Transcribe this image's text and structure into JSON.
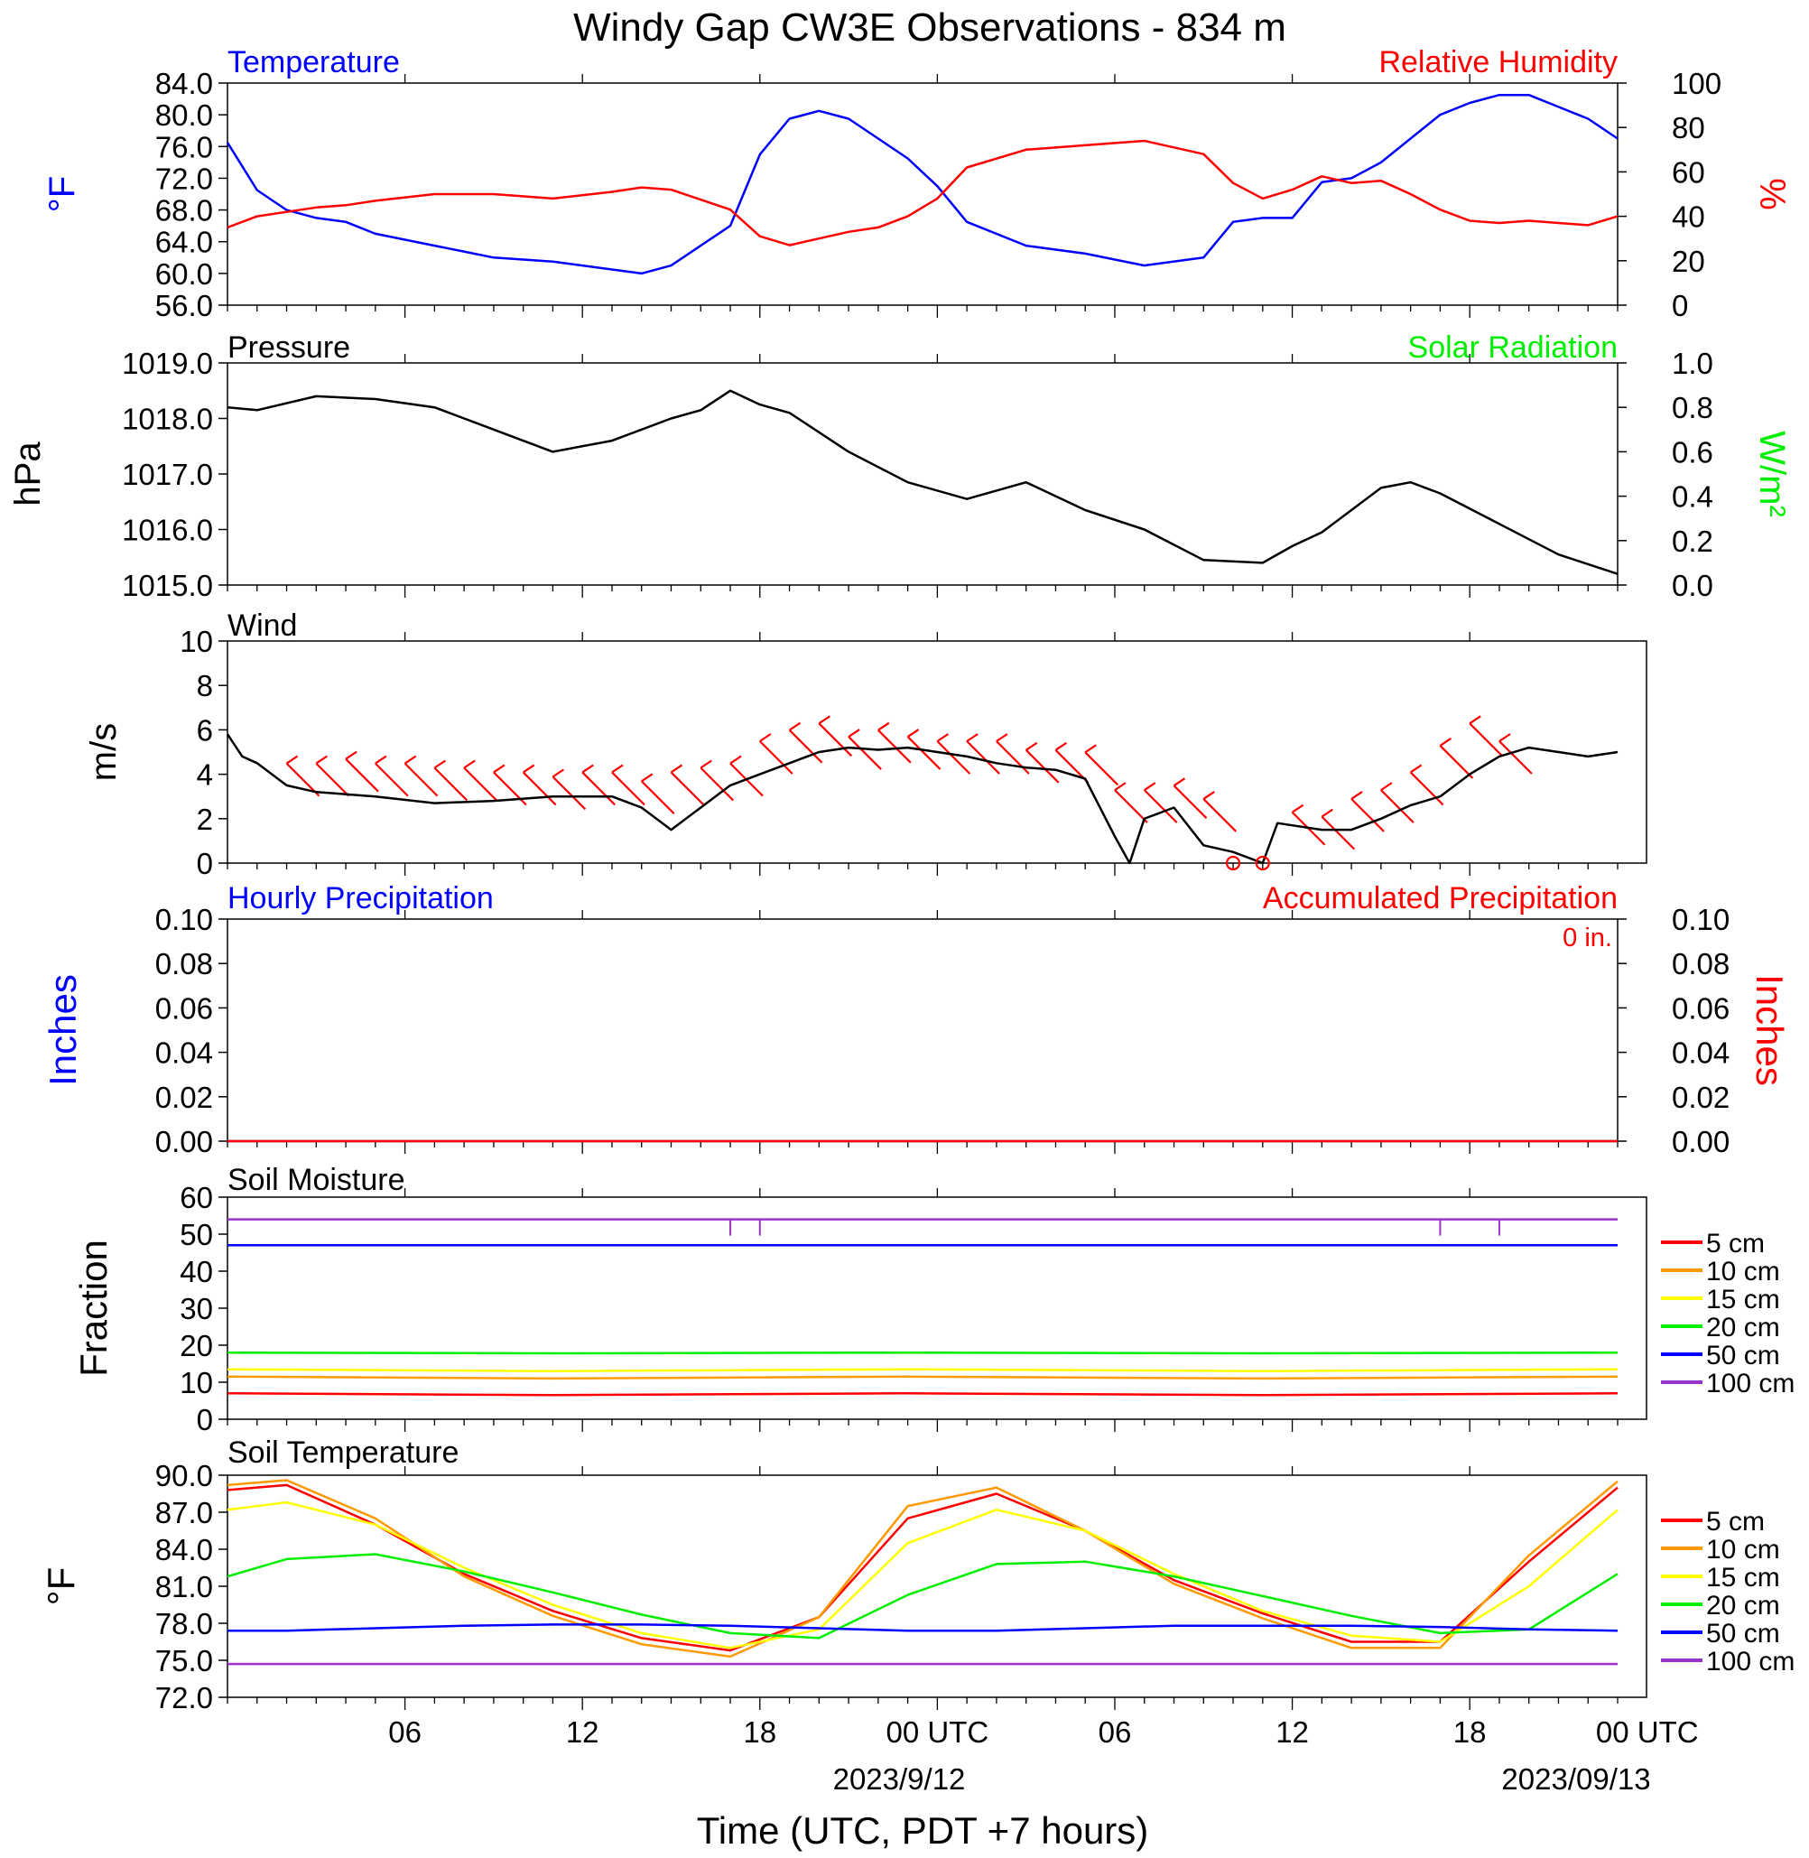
{
  "title": "Windy Gap CW3E Observations - 834 m",
  "x_axis": {
    "label": "Time (UTC, PDT +7 hours)",
    "ticks": [
      "06",
      "12",
      "18",
      "00 UTC",
      "06",
      "12",
      "18",
      "00 UTC"
    ],
    "dates": [
      "2023/9/12",
      "2023/09/13"
    ]
  },
  "colors": {
    "blue": "#0000ff",
    "red": "#ff0000",
    "green": "#00ee00",
    "black": "#000000",
    "orange": "#ff9900",
    "yellow": "#ffff00",
    "purple": "#9933cc"
  },
  "chart_data": [
    {
      "type": "line",
      "title_left": "Temperature",
      "title_right": "Relative Humidity",
      "ylabel_left": "°F",
      "ylabel_right": "%",
      "ylim_left": [
        56,
        84
      ],
      "ylim_right": [
        0,
        100
      ],
      "yticks_left": [
        "56.0",
        "60.0",
        "64.0",
        "68.0",
        "72.0",
        "76.0",
        "80.0",
        "84.0"
      ],
      "yticks_right": [
        "0",
        "20",
        "40",
        "60",
        "80",
        "100"
      ],
      "x_hours": [
        1,
        2,
        3,
        4,
        5,
        6,
        8,
        10,
        12,
        14,
        15,
        16,
        18,
        19,
        20,
        21,
        22,
        23,
        24,
        25,
        26,
        28,
        30,
        32,
        34,
        35,
        36,
        37,
        38,
        39,
        40,
        41,
        42,
        43,
        44,
        45,
        46,
        47,
        48
      ],
      "series": [
        {
          "name": "Temperature",
          "axis": "left",
          "color": "#0000ff",
          "values": [
            76.5,
            70.5,
            68,
            67,
            66.5,
            65,
            63.5,
            62,
            61.5,
            60.5,
            60,
            61,
            66,
            75,
            79.5,
            80.5,
            79.5,
            77,
            74.5,
            71,
            66.5,
            63.5,
            62.5,
            61,
            62,
            66.5,
            67,
            67,
            71.5,
            72,
            74,
            77,
            80,
            81.5,
            82.5,
            82.5,
            81,
            79.5,
            77
          ]
        },
        {
          "name": "Relative Humidity",
          "axis": "right",
          "color": "#ff0000",
          "values": [
            35,
            40,
            42,
            44,
            45,
            47,
            50,
            50,
            48,
            51,
            53,
            52,
            43,
            31,
            27,
            30,
            33,
            35,
            40,
            48,
            62,
            70,
            72,
            74,
            68,
            55,
            48,
            52,
            58,
            55,
            56,
            50,
            43,
            38,
            37,
            38,
            37,
            36,
            40
          ]
        }
      ]
    },
    {
      "type": "line",
      "title_left": "Pressure",
      "title_right": "Solar Radiation",
      "ylabel_left": "hPa",
      "ylabel_right": "W/m²",
      "ylim_left": [
        1015,
        1019
      ],
      "ylim_right": [
        0,
        1
      ],
      "yticks_left": [
        "1015.0",
        "1016.0",
        "1017.0",
        "1018.0",
        "1019.0"
      ],
      "yticks_right": [
        "0.0",
        "0.2",
        "0.4",
        "0.6",
        "0.8",
        "1.0"
      ],
      "x_hours": [
        1,
        2,
        4,
        6,
        8,
        10,
        12,
        14,
        16,
        17,
        18,
        19,
        20,
        22,
        24,
        26,
        28,
        30,
        32,
        34,
        36,
        37,
        38,
        40,
        41,
        42,
        44,
        46,
        48
      ],
      "series": [
        {
          "name": "Pressure",
          "axis": "left",
          "color": "#000000",
          "values": [
            1018.2,
            1018.15,
            1018.4,
            1018.35,
            1018.2,
            1017.8,
            1017.4,
            1017.6,
            1018.0,
            1018.15,
            1018.5,
            1018.25,
            1018.1,
            1017.4,
            1016.85,
            1016.55,
            1016.85,
            1016.35,
            1016.0,
            1015.45,
            1015.4,
            1015.7,
            1015.95,
            1016.75,
            1016.85,
            1016.65,
            1016.1,
            1015.55,
            1015.2
          ]
        }
      ]
    },
    {
      "type": "line",
      "title_left": "Wind",
      "ylabel_left": "m/s",
      "ylim_left": [
        0,
        10
      ],
      "yticks_left": [
        "0",
        "2",
        "4",
        "6",
        "8",
        "10"
      ],
      "x_hours": [
        1,
        1.5,
        2,
        3,
        4,
        6,
        8,
        10,
        12,
        14,
        15,
        16,
        17,
        18,
        19,
        20,
        21,
        22,
        23,
        24,
        25,
        26,
        27,
        28,
        29,
        30,
        31,
        31.5,
        32,
        33,
        34,
        35,
        36,
        36.5,
        37,
        38,
        39,
        40,
        41,
        42,
        43,
        44,
        45,
        46,
        47,
        48
      ],
      "series": [
        {
          "name": "Wind speed",
          "axis": "left",
          "color": "#000000",
          "values": [
            5.8,
            4.8,
            4.5,
            3.5,
            3.2,
            3.0,
            2.7,
            2.8,
            3.0,
            3.0,
            2.5,
            1.5,
            2.5,
            3.5,
            4.0,
            4.5,
            5.0,
            5.2,
            5.1,
            5.2,
            5.0,
            4.8,
            4.5,
            4.3,
            4.2,
            3.8,
            1.2,
            0.0,
            2.0,
            2.5,
            0.8,
            0.5,
            0.0,
            1.8,
            1.7,
            1.5,
            1.5,
            2.0,
            2.6,
            3.0,
            4.0,
            4.8,
            5.2,
            5.0,
            4.8,
            5.0
          ]
        }
      ],
      "barbs": [
        {
          "hour": 3,
          "speed": 4.0
        },
        {
          "hour": 4,
          "speed": 4.0
        },
        {
          "hour": 5,
          "speed": 4.2
        },
        {
          "hour": 6,
          "speed": 4.0
        },
        {
          "hour": 7,
          "speed": 4.0
        },
        {
          "hour": 8,
          "speed": 3.8
        },
        {
          "hour": 9,
          "speed": 3.8
        },
        {
          "hour": 10,
          "speed": 3.6
        },
        {
          "hour": 11,
          "speed": 3.6
        },
        {
          "hour": 12,
          "speed": 3.4
        },
        {
          "hour": 13,
          "speed": 3.6
        },
        {
          "hour": 14,
          "speed": 3.6
        },
        {
          "hour": 15,
          "speed": 3.2
        },
        {
          "hour": 16,
          "speed": 3.6
        },
        {
          "hour": 17,
          "speed": 3.8
        },
        {
          "hour": 18,
          "speed": 4.0
        },
        {
          "hour": 19,
          "speed": 5.0
        },
        {
          "hour": 20,
          "speed": 5.5
        },
        {
          "hour": 21,
          "speed": 5.8
        },
        {
          "hour": 22,
          "speed": 5.2
        },
        {
          "hour": 23,
          "speed": 5.5
        },
        {
          "hour": 24,
          "speed": 5.2
        },
        {
          "hour": 25,
          "speed": 5.0
        },
        {
          "hour": 26,
          "speed": 5.0
        },
        {
          "hour": 27,
          "speed": 5.0
        },
        {
          "hour": 28,
          "speed": 4.6
        },
        {
          "hour": 29,
          "speed": 4.6
        },
        {
          "hour": 30,
          "speed": 4.5
        },
        {
          "hour": 31,
          "speed": 2.8
        },
        {
          "hour": 32,
          "speed": 2.8
        },
        {
          "hour": 33,
          "speed": 3.0
        },
        {
          "hour": 34,
          "speed": 2.4
        },
        {
          "hour": 37,
          "speed": 1.8
        },
        {
          "hour": 38,
          "speed": 1.6
        },
        {
          "hour": 39,
          "speed": 2.4
        },
        {
          "hour": 40,
          "speed": 2.8
        },
        {
          "hour": 41,
          "speed": 3.6
        },
        {
          "hour": 42,
          "speed": 4.8
        },
        {
          "hour": 43,
          "speed": 5.8
        },
        {
          "hour": 44,
          "speed": 5.0
        }
      ],
      "calm_markers_hours": [
        35,
        36
      ]
    },
    {
      "type": "line",
      "title_left": "Hourly Precipitation",
      "title_right": "Accumulated Precipitation",
      "annotation": "0 in.",
      "ylabel_left": "Inches",
      "ylabel_right": "Inches",
      "ylim_left": [
        0,
        0.1
      ],
      "ylim_right": [
        0,
        0.1
      ],
      "yticks_left": [
        "0.00",
        "0.02",
        "0.04",
        "0.06",
        "0.08",
        "0.10"
      ],
      "yticks_right": [
        "0.00",
        "0.02",
        "0.04",
        "0.06",
        "0.08",
        "0.10"
      ],
      "x_hours": [
        1,
        48
      ],
      "series": [
        {
          "name": "Hourly Precipitation",
          "axis": "left",
          "color": "#0000ff",
          "values": [
            0,
            0
          ]
        },
        {
          "name": "Accumulated Precipitation",
          "axis": "left",
          "color": "#ff0000",
          "values": [
            0,
            0
          ]
        }
      ]
    },
    {
      "type": "line",
      "title_left": "Soil Moisture",
      "ylabel_left": "Fraction",
      "ylim_left": [
        0,
        60
      ],
      "yticks_left": [
        "0",
        "10",
        "20",
        "30",
        "40",
        "50",
        "60"
      ],
      "x_hours": [
        1,
        12,
        24,
        36,
        48
      ],
      "series": [
        {
          "name": "5 cm",
          "axis": "left",
          "color": "#ff0000",
          "values": [
            7,
            6.5,
            7,
            6.5,
            7
          ]
        },
        {
          "name": "10 cm",
          "axis": "left",
          "color": "#ff9900",
          "values": [
            11.5,
            11,
            11.5,
            11,
            11.5
          ]
        },
        {
          "name": "15 cm",
          "axis": "left",
          "color": "#ffff00",
          "values": [
            13.5,
            13,
            13.5,
            13,
            13.5
          ]
        },
        {
          "name": "20 cm",
          "axis": "left",
          "color": "#00ee00",
          "values": [
            18,
            17.8,
            18,
            17.8,
            18
          ]
        },
        {
          "name": "50 cm",
          "axis": "left",
          "color": "#0000ff",
          "values": [
            47,
            47,
            47,
            47,
            47
          ]
        },
        {
          "name": "100 cm",
          "axis": "left",
          "color": "#9933cc",
          "values": [
            54,
            54,
            54,
            54,
            54
          ]
        }
      ],
      "dips_100cm_hours": [
        18,
        19,
        42,
        44
      ]
    },
    {
      "type": "line",
      "title_left": "Soil Temperature",
      "ylabel_left": "°F",
      "ylim_left": [
        72,
        90
      ],
      "yticks_left": [
        "72.0",
        "75.0",
        "78.0",
        "81.0",
        "84.0",
        "87.0",
        "90.0"
      ],
      "x_hours": [
        1,
        3,
        6,
        9,
        12,
        15,
        18,
        21,
        24,
        27,
        30,
        33,
        36,
        39,
        42,
        45,
        48
      ],
      "series": [
        {
          "name": "5 cm",
          "axis": "left",
          "color": "#ff0000",
          "values": [
            88.8,
            89.2,
            86,
            82,
            79,
            76.8,
            75.8,
            78.5,
            86.5,
            88.5,
            85.5,
            81.5,
            78.8,
            76.5,
            76.5,
            83,
            89
          ]
        },
        {
          "name": "10 cm",
          "axis": "left",
          "color": "#ff9900",
          "values": [
            89.2,
            89.6,
            86.5,
            81.8,
            78.6,
            76.3,
            75.3,
            78.5,
            87.5,
            89,
            85.5,
            81.2,
            78.4,
            76,
            76,
            83.5,
            89.5
          ]
        },
        {
          "name": "15 cm",
          "axis": "left",
          "color": "#ffff00",
          "values": [
            87.2,
            87.8,
            86,
            82.5,
            79.5,
            77.2,
            76,
            77.5,
            84.5,
            87.2,
            85.5,
            82,
            79,
            77,
            76.5,
            81,
            87.2
          ]
        },
        {
          "name": "20 cm",
          "axis": "left",
          "color": "#00ee00",
          "values": [
            81.8,
            83.2,
            83.6,
            82.2,
            80.5,
            78.7,
            77.2,
            76.8,
            80.3,
            82.8,
            83,
            81.8,
            80.2,
            78.6,
            77.2,
            77.5,
            82
          ]
        },
        {
          "name": "50 cm",
          "axis": "left",
          "color": "#0000ff",
          "values": [
            77.4,
            77.4,
            77.6,
            77.8,
            77.9,
            77.9,
            77.8,
            77.6,
            77.4,
            77.4,
            77.6,
            77.8,
            77.8,
            77.8,
            77.7,
            77.5,
            77.4
          ]
        },
        {
          "name": "100 cm",
          "axis": "left",
          "color": "#9933cc",
          "values": [
            74.7,
            74.7,
            74.7,
            74.7,
            74.7,
            74.7,
            74.7,
            74.7,
            74.7,
            74.7,
            74.7,
            74.7,
            74.7,
            74.7,
            74.7,
            74.7,
            74.7
          ]
        }
      ]
    }
  ]
}
